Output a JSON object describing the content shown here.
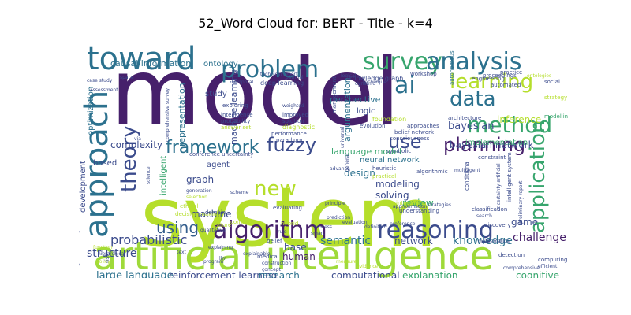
{
  "title": "52_Word Cloud for: BERT - Title - k=4",
  "colors": {
    "purple": "#46206b",
    "indigo": "#3b4b8c",
    "teal": "#2c718e",
    "blue": "#355f8d",
    "green": "#37a56d",
    "lime": "#b5de2b",
    "yellowgreen": "#9fda3a",
    "mint": "#5cc863"
  },
  "words": [
    {
      "text": "model",
      "color": "purple"
    },
    {
      "text": "system",
      "color": "lime"
    },
    {
      "text": "artificial intelligence",
      "color": "yellowgreen"
    },
    {
      "text": "toward",
      "color": "teal"
    },
    {
      "text": "approach",
      "color": "teal"
    },
    {
      "text": "survey",
      "color": "green"
    },
    {
      "text": "analysis",
      "color": "teal"
    },
    {
      "text": "problem",
      "color": "teal"
    },
    {
      "text": "learning",
      "color": "lime"
    },
    {
      "text": "ai",
      "color": "teal"
    },
    {
      "text": "data",
      "color": "teal"
    },
    {
      "text": "method",
      "color": "green"
    },
    {
      "text": "framework",
      "color": "teal"
    },
    {
      "text": "fuzzy",
      "color": "indigo"
    },
    {
      "text": "use",
      "color": "indigo"
    },
    {
      "text": "planning",
      "color": "purple"
    },
    {
      "text": "application",
      "color": "green"
    },
    {
      "text": "theory",
      "color": "indigo"
    },
    {
      "text": "algorithm",
      "color": "purple"
    },
    {
      "text": "reasoning",
      "color": "indigo"
    },
    {
      "text": "using",
      "color": "blue"
    },
    {
      "text": "new",
      "color": "lime"
    },
    {
      "text": "probabilistic",
      "color": "indigo"
    },
    {
      "text": "semantic",
      "color": "teal"
    },
    {
      "text": "knowledge",
      "color": "teal"
    },
    {
      "text": "game",
      "color": "indigo"
    },
    {
      "text": "challenge",
      "color": "purple"
    },
    {
      "text": "structure",
      "color": "indigo"
    },
    {
      "text": "large language",
      "color": "teal"
    },
    {
      "text": "reinforcement learning",
      "color": "indigo"
    },
    {
      "text": "research",
      "color": "teal"
    },
    {
      "text": "computational",
      "color": "indigo"
    },
    {
      "text": "explanation",
      "color": "green"
    },
    {
      "text": "cognitive",
      "color": "green"
    },
    {
      "text": "network",
      "color": "indigo"
    },
    {
      "text": "human",
      "color": "purple"
    },
    {
      "text": "base",
      "color": "indigo"
    },
    {
      "text": "machine",
      "color": "indigo"
    },
    {
      "text": "graph",
      "color": "indigo"
    },
    {
      "text": "intelligent",
      "color": "green"
    },
    {
      "text": "agent",
      "color": "indigo"
    },
    {
      "text": "complexity",
      "color": "indigo"
    },
    {
      "text": "based",
      "color": "indigo"
    },
    {
      "text": "development",
      "color": "indigo"
    },
    {
      "text": "optimization",
      "color": "teal"
    },
    {
      "text": "causal information",
      "color": "teal"
    },
    {
      "text": "ontology",
      "color": "teal"
    },
    {
      "text": "representation",
      "color": "teal"
    },
    {
      "text": "study",
      "color": "indigo"
    },
    {
      "text": "machine learning",
      "color": "indigo"
    },
    {
      "text": "argumentation",
      "color": "teal"
    },
    {
      "text": "perspective",
      "color": "teal"
    },
    {
      "text": "logic",
      "color": "indigo"
    },
    {
      "text": "language model",
      "color": "green"
    },
    {
      "text": "neural network",
      "color": "teal"
    },
    {
      "text": "design",
      "color": "teal"
    },
    {
      "text": "modeling",
      "color": "indigo"
    },
    {
      "text": "solving",
      "color": "indigo"
    },
    {
      "text": "review",
      "color": "green"
    },
    {
      "text": "bayesian",
      "color": "indigo"
    },
    {
      "text": "inference",
      "color": "lime"
    },
    {
      "text": "bayesian network",
      "color": "indigo"
    },
    {
      "text": "implementation",
      "color": "green"
    },
    {
      "text": "deep learning",
      "color": "indigo"
    },
    {
      "text": "knowledge graph",
      "color": "indigo"
    },
    {
      "text": "workshop",
      "color": "indigo"
    },
    {
      "text": "technique",
      "color": "indigo"
    },
    {
      "text": "proceedings",
      "color": "indigo"
    },
    {
      "text": "practice",
      "color": "indigo"
    },
    {
      "text": "social",
      "color": "indigo"
    },
    {
      "text": "strategy",
      "color": "lime"
    },
    {
      "text": "engineering",
      "color": "indigo"
    },
    {
      "text": "automated",
      "color": "indigo"
    },
    {
      "text": "ontologies",
      "color": "lime"
    },
    {
      "text": "autonomous",
      "color": "teal"
    },
    {
      "text": "modelling",
      "color": "green"
    },
    {
      "text": "architecture",
      "color": "indigo"
    },
    {
      "text": "evolution",
      "color": "indigo"
    },
    {
      "text": "approaches",
      "color": "indigo"
    },
    {
      "text": "belief network",
      "color": "indigo"
    },
    {
      "text": "foundation",
      "color": "lime"
    },
    {
      "text": "management",
      "color": "indigo"
    },
    {
      "text": "weighted",
      "color": "indigo"
    },
    {
      "text": "improved",
      "color": "indigo"
    },
    {
      "text": "solution",
      "color": "indigo"
    },
    {
      "text": "diagnostic",
      "color": "lime"
    },
    {
      "text": "performance",
      "color": "indigo"
    },
    {
      "text": "paradigm",
      "color": "indigo"
    },
    {
      "text": "consciousness",
      "color": "indigo"
    },
    {
      "text": "symbolic",
      "color": "indigo"
    },
    {
      "text": "heuristic",
      "color": "indigo"
    },
    {
      "text": "practical",
      "color": "lime"
    },
    {
      "text": "algorithmic",
      "color": "indigo"
    },
    {
      "text": "constraint",
      "color": "indigo"
    },
    {
      "text": "multiagent",
      "color": "indigo"
    },
    {
      "text": "exploring",
      "color": "indigo"
    },
    {
      "text": "intelligence",
      "color": "indigo"
    },
    {
      "text": "probability",
      "color": "indigo"
    },
    {
      "text": "answer set",
      "color": "lime"
    },
    {
      "text": "conference uncertainty",
      "color": "indigo"
    },
    {
      "text": "comprehensive survey",
      "color": "indigo"
    },
    {
      "text": "case study",
      "color": "indigo"
    },
    {
      "text": "assessment",
      "color": "indigo"
    },
    {
      "text": "space",
      "color": "indigo"
    },
    {
      "text": "temporal",
      "color": "indigo"
    },
    {
      "text": "optimal",
      "color": "indigo"
    },
    {
      "text": "technical report",
      "color": "indigo"
    },
    {
      "text": "dynamic",
      "color": "indigo"
    },
    {
      "text": "logical",
      "color": "indigo"
    },
    {
      "text": "generation",
      "color": "indigo"
    },
    {
      "text": "selection",
      "color": "lime"
    },
    {
      "text": "scheme",
      "color": "indigo"
    },
    {
      "text": "ethical",
      "color": "lime"
    },
    {
      "text": "decision making",
      "color": "lime"
    },
    {
      "text": "domain",
      "color": "indigo"
    },
    {
      "text": "control",
      "color": "lime"
    },
    {
      "text": "feature",
      "color": "lime"
    },
    {
      "text": "qualitative",
      "color": "indigo"
    },
    {
      "text": "explaining",
      "color": "indigo"
    },
    {
      "text": "hybrid",
      "color": "lime"
    },
    {
      "text": "rule",
      "color": "indigo"
    },
    {
      "text": "belief",
      "color": "indigo"
    },
    {
      "text": "process",
      "color": "indigo"
    },
    {
      "text": "smart",
      "color": "indigo"
    },
    {
      "text": "evaluating",
      "color": "indigo"
    },
    {
      "text": "prediction",
      "color": "indigo"
    },
    {
      "text": "evaluation",
      "color": "indigo"
    },
    {
      "text": "definition",
      "color": "indigo"
    },
    {
      "text": "preference",
      "color": "indigo"
    },
    {
      "text": "understanding",
      "color": "indigo"
    },
    {
      "text": "approximation",
      "color": "indigo"
    },
    {
      "text": "integrating",
      "color": "lime"
    },
    {
      "text": "strategies",
      "color": "indigo"
    },
    {
      "text": "classification",
      "color": "indigo"
    },
    {
      "text": "search",
      "color": "indigo"
    },
    {
      "text": "mathematical",
      "color": "indigo"
    },
    {
      "text": "conditional",
      "color": "indigo"
    },
    {
      "text": "discovery",
      "color": "indigo"
    },
    {
      "text": "explainable",
      "color": "indigo"
    },
    {
      "text": "medical",
      "color": "indigo"
    },
    {
      "text": "construction",
      "color": "indigo"
    },
    {
      "text": "concept",
      "color": "indigo"
    },
    {
      "text": "program",
      "color": "indigo"
    },
    {
      "text": "llm",
      "color": "indigo"
    },
    {
      "text": "text",
      "color": "indigo"
    },
    {
      "text": "risk",
      "color": "indigo"
    },
    {
      "text": "function",
      "color": "lime"
    },
    {
      "text": "hierarchical",
      "color": "indigo"
    },
    {
      "text": "policy",
      "color": "lime"
    },
    {
      "text": "computing",
      "color": "indigo"
    },
    {
      "text": "efficient",
      "color": "indigo"
    },
    {
      "text": "detection",
      "color": "indigo"
    },
    {
      "text": "evidence",
      "color": "lime"
    },
    {
      "text": "measure",
      "color": "lime"
    },
    {
      "text": "general intelligence",
      "color": "indigo"
    },
    {
      "text": "preliminary report",
      "color": "indigo"
    },
    {
      "text": "intelligent system",
      "color": "indigo"
    },
    {
      "text": "comprehensive",
      "color": "indigo"
    },
    {
      "text": "via",
      "color": "indigo"
    },
    {
      "text": "principle",
      "color": "indigo"
    },
    {
      "text": "advance",
      "color": "indigo"
    },
    {
      "text": "general",
      "color": "indigo"
    },
    {
      "text": "universal",
      "color": "indigo"
    },
    {
      "text": "science",
      "color": "indigo"
    },
    {
      "text": "uncertainty artificial",
      "color": "indigo"
    }
  ]
}
